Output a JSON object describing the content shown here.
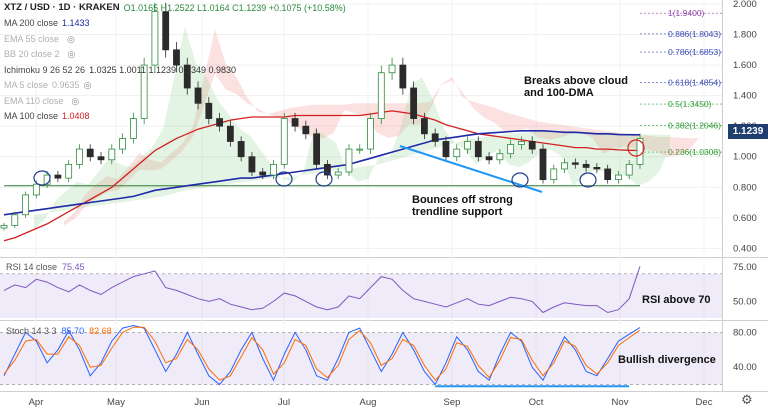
{
  "header": {
    "symbol": "XTZ / USD · 1D · KRAKEN",
    "ohlc": "O1.0165 H1.2522 L1.0164 C1.1239 +0.1075 (+10.58%)"
  },
  "indicators": [
    {
      "label": "MA 200 close",
      "value": "1.1433",
      "color": "#1f2aa8",
      "faded": false
    },
    {
      "label": "EMA 55 close",
      "value": "",
      "color": "#999999",
      "faded": true
    },
    {
      "label": "BB 20 close 2",
      "value": "",
      "color": "#999999",
      "faded": true
    },
    {
      "label": "Ichimoku 9 26 52 26",
      "value": "1.0325  1.0011  1.1239  0.9349  0.9830",
      "color": "#333333",
      "faded": false
    },
    {
      "label": "MA 5 close",
      "value": "0.9635",
      "color": "#999999",
      "faded": true
    },
    {
      "label": "EMA 110 close",
      "value": "",
      "color": "#999999",
      "faded": true
    },
    {
      "label": "MA 100 close",
      "value": "1.0408",
      "color": "#d32020",
      "faded": false
    }
  ],
  "current_price": "1.1239",
  "annotations": {
    "breaks": "Breaks above cloud and 100-DMA",
    "bounces": "Bounces off strong trendline support",
    "rsi_note": "RSI above 70",
    "stoch_note": "Bullish divergence"
  },
  "rsi_pane": {
    "label": "RSI 14 close",
    "value": "75.45"
  },
  "stoch_pane": {
    "label": "Stoch 14 3 3",
    "k": "85.70",
    "d": "82.68"
  },
  "chart_data": [
    {
      "type": "line",
      "title": "XTZ / USD · 1D · KRAKEN",
      "x_ticks": [
        "Apr",
        "May",
        "Jun",
        "Jul",
        "Aug",
        "Sep",
        "Oct",
        "Nov",
        "Dec"
      ],
      "y_ticks": [
        "0.400",
        "0.600",
        "0.800",
        "1.000",
        "1.200",
        "1.400",
        "1.600",
        "1.800",
        "2.000"
      ],
      "ylim": [
        0.35,
        2.0
      ],
      "series": [
        {
          "name": "XTZ/USD close",
          "values": [
            0.55,
            0.62,
            0.75,
            0.82,
            0.88,
            0.86,
            0.95,
            1.05,
            1.0,
            0.98,
            1.05,
            1.12,
            1.25,
            1.6,
            1.95,
            1.7,
            1.6,
            1.45,
            1.35,
            1.25,
            1.2,
            1.1,
            1.0,
            0.9,
            0.88,
            0.95,
            1.25,
            1.2,
            1.15,
            0.95,
            0.88,
            0.9,
            1.05,
            1.05,
            1.25,
            1.55,
            1.6,
            1.45,
            1.25,
            1.15,
            1.1,
            1.0,
            1.05,
            1.1,
            1.0,
            0.98,
            1.02,
            1.08,
            1.1,
            1.05,
            0.85,
            0.92,
            0.96,
            0.95,
            0.93,
            0.92,
            0.85,
            0.88,
            0.95,
            1.12
          ]
        },
        {
          "name": "MA 200",
          "values": [
            0.62,
            0.63,
            0.64,
            0.65,
            0.66,
            0.67,
            0.68,
            0.69,
            0.7,
            0.71,
            0.72,
            0.73,
            0.74,
            0.76,
            0.78,
            0.79,
            0.8,
            0.81,
            0.82,
            0.83,
            0.84,
            0.85,
            0.86,
            0.86,
            0.87,
            0.88,
            0.89,
            0.9,
            0.91,
            0.92,
            0.93,
            0.94,
            0.95,
            0.97,
            0.99,
            1.01,
            1.03,
            1.05,
            1.07,
            1.09,
            1.11,
            1.12,
            1.13,
            1.14,
            1.15,
            1.155,
            1.16,
            1.165,
            1.17,
            1.17,
            1.17,
            1.165,
            1.16,
            1.16,
            1.155,
            1.15,
            1.15,
            1.145,
            1.144,
            1.1433
          ]
        },
        {
          "name": "MA 100",
          "values": [
            0.45,
            0.47,
            0.5,
            0.53,
            0.56,
            0.6,
            0.64,
            0.68,
            0.72,
            0.76,
            0.8,
            0.86,
            0.92,
            0.98,
            1.04,
            1.08,
            1.12,
            1.15,
            1.18,
            1.2,
            1.22,
            1.24,
            1.25,
            1.26,
            1.26,
            1.26,
            1.26,
            1.27,
            1.27,
            1.27,
            1.27,
            1.27,
            1.27,
            1.27,
            1.28,
            1.29,
            1.3,
            1.29,
            1.28,
            1.26,
            1.24,
            1.21,
            1.19,
            1.17,
            1.15,
            1.14,
            1.13,
            1.12,
            1.11,
            1.1,
            1.09,
            1.08,
            1.07,
            1.06,
            1.06,
            1.05,
            1.05,
            1.045,
            1.042,
            1.0408
          ]
        },
        {
          "name": "Trendline support",
          "values": [
            0.81,
            0.81,
            0.81,
            0.81,
            0.81,
            0.81,
            0.81,
            0.81,
            0.81,
            0.81,
            0.81,
            0.81,
            0.81,
            0.81,
            0.81,
            0.81,
            0.81,
            0.81,
            0.81,
            0.81,
            0.81,
            0.81,
            0.81,
            0.81,
            0.81,
            0.81,
            0.81,
            0.81,
            0.81,
            0.81,
            0.81,
            0.81,
            0.81,
            0.81,
            0.81,
            0.81,
            0.81,
            0.81,
            0.81,
            0.81,
            0.81,
            0.81,
            0.81,
            0.81,
            0.81,
            0.81,
            0.81,
            0.81,
            0.81,
            0.81,
            0.81,
            0.81,
            0.81,
            0.81,
            0.81,
            0.81,
            0.81,
            0.81,
            0.81,
            0.81
          ]
        }
      ],
      "fibonacci": [
        {
          "label": "1(1.9400)",
          "value": 1.94
        },
        {
          "label": "0.886(1.8043)",
          "value": 1.8043
        },
        {
          "label": "0.786(1.6853)",
          "value": 1.6853
        },
        {
          "label": "0.618(1.4854)",
          "value": 1.4854
        },
        {
          "label": "0.5(1.3450)",
          "value": 1.345
        },
        {
          "label": "0.382(1.2046)",
          "value": 1.2046
        },
        {
          "label": "0.236(1.0308)",
          "value": 1.0308
        }
      ],
      "fib_colors": [
        "#8e44ad",
        "#3f51b5",
        "#3f51b5",
        "#3f51b5",
        "#2e9e36",
        "#2e9e36",
        "#2e9e36"
      ]
    },
    {
      "type": "line",
      "title": "RSI 14 close",
      "y_ticks": [
        "50.00",
        "75.00"
      ],
      "ylim": [
        38,
        80
      ],
      "band": [
        30,
        70
      ],
      "series": [
        {
          "name": "RSI 14 close",
          "values": [
            58,
            62,
            60,
            66,
            64,
            60,
            57,
            62,
            58,
            55,
            60,
            64,
            68,
            70,
            72,
            60,
            58,
            55,
            52,
            50,
            52,
            48,
            46,
            44,
            45,
            50,
            56,
            54,
            50,
            46,
            44,
            46,
            54,
            52,
            60,
            68,
            66,
            58,
            52,
            50,
            48,
            46,
            49,
            52,
            48,
            47,
            50,
            53,
            52,
            50,
            42,
            46,
            49,
            48,
            47,
            47,
            42,
            44,
            52,
            75.45
          ]
        }
      ]
    },
    {
      "type": "line",
      "title": "Stoch 14 3 3",
      "y_ticks": [
        "40.00",
        "80.00"
      ],
      "ylim": [
        16,
        92
      ],
      "band": [
        20,
        80
      ],
      "series": [
        {
          "name": "%K",
          "values": [
            30,
            55,
            80,
            70,
            45,
            60,
            82,
            60,
            30,
            45,
            70,
            85,
            88,
            85,
            60,
            35,
            55,
            80,
            55,
            30,
            20,
            35,
            60,
            80,
            50,
            25,
            55,
            80,
            60,
            30,
            25,
            50,
            80,
            85,
            60,
            35,
            55,
            80,
            60,
            35,
            20,
            45,
            75,
            60,
            35,
            25,
            55,
            80,
            70,
            40,
            25,
            50,
            75,
            60,
            35,
            30,
            50,
            70,
            78,
            85.7
          ]
        },
        {
          "name": "%D",
          "values": [
            32,
            48,
            70,
            72,
            55,
            55,
            75,
            65,
            40,
            42,
            62,
            80,
            86,
            86,
            70,
            45,
            50,
            72,
            60,
            38,
            25,
            30,
            52,
            74,
            60,
            32,
            45,
            72,
            65,
            38,
            28,
            42,
            72,
            82,
            68,
            42,
            50,
            72,
            65,
            42,
            25,
            38,
            68,
            64,
            42,
            28,
            48,
            74,
            72,
            48,
            30,
            45,
            70,
            64,
            42,
            32,
            45,
            65,
            74,
            82.68
          ]
        },
        {
          "name": "Divergence line",
          "values": [
            null,
            null,
            null,
            null,
            null,
            null,
            null,
            null,
            null,
            null,
            null,
            null,
            null,
            null,
            null,
            null,
            null,
            null,
            null,
            null,
            null,
            null,
            null,
            null,
            null,
            null,
            null,
            null,
            null,
            null,
            null,
            null,
            null,
            null,
            null,
            null,
            null,
            null,
            null,
            null,
            18,
            18,
            18,
            18,
            18,
            18,
            18,
            18,
            18,
            18,
            18,
            18,
            18,
            18,
            18,
            18,
            18,
            18,
            18,
            null
          ]
        }
      ]
    }
  ]
}
